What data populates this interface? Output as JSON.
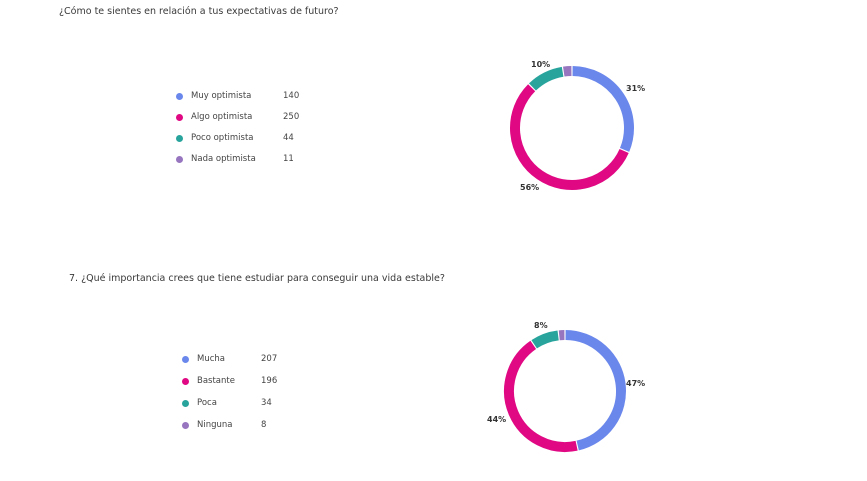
{
  "chart_data": [
    {
      "type": "pie",
      "title": "¿Cómo te sientes en relación a tus expectativas de futuro?",
      "categories": [
        "Muy optimista",
        "Algo optimista",
        "Poco optimista",
        "Nada optimista"
      ],
      "values": [
        140,
        250,
        44,
        11
      ],
      "percent_labels": [
        "31%",
        "56%",
        "10%",
        ""
      ],
      "colors": [
        "#6A87EC",
        "#E00883",
        "#28A49D",
        "#9775BF"
      ],
      "legend_placement": "left"
    },
    {
      "type": "pie",
      "title": "7. ¿Qué importancia crees que tiene estudiar para conseguir una vida estable?",
      "categories": [
        "Mucha",
        "Bastante",
        "Poca",
        "Ninguna"
      ],
      "values": [
        207,
        196,
        34,
        8
      ],
      "percent_labels": [
        "47%",
        "44%",
        "8%",
        ""
      ],
      "colors": [
        "#6A87EC",
        "#E00883",
        "#28A49D",
        "#9775BF"
      ],
      "legend_placement": "left"
    }
  ]
}
